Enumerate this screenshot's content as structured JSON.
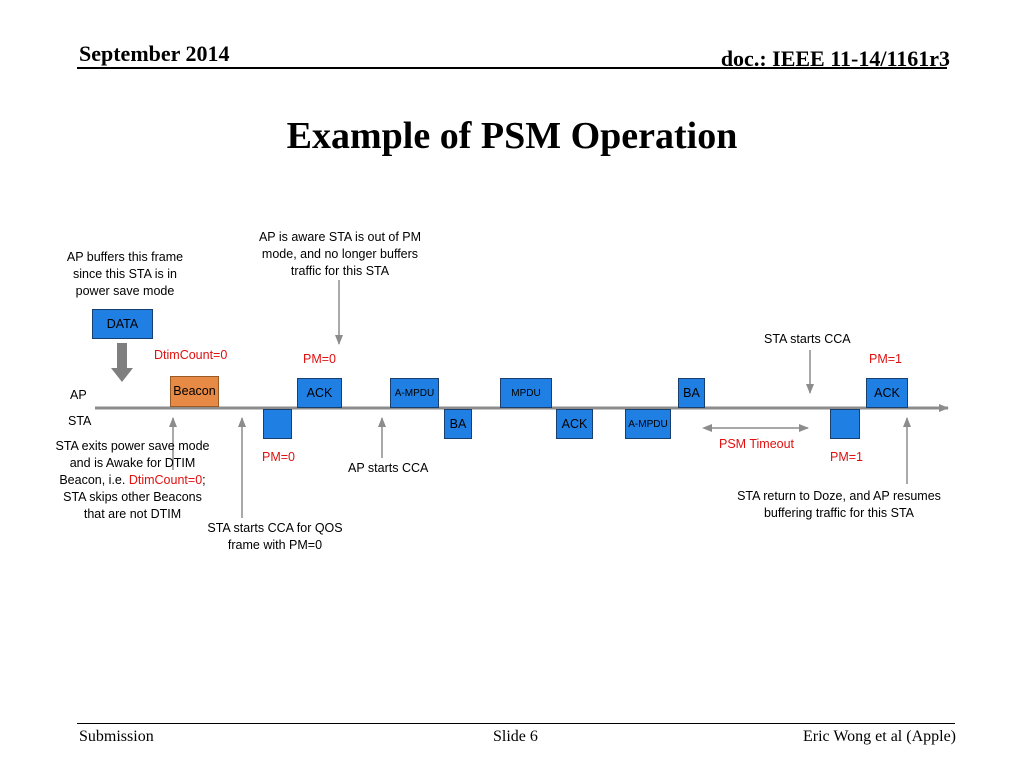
{
  "header": {
    "date": "September 2014",
    "doc": "doc.: IEEE 11-14/1161r3"
  },
  "title": "Example of PSM Operation",
  "footer": {
    "left": "Submission",
    "center": "Slide 6",
    "right": "Eric Wong et al (Apple)"
  },
  "rows": {
    "ap": "AP",
    "sta": "STA"
  },
  "frames": {
    "data": "DATA",
    "beacon": "Beacon",
    "ap_ack_1": "ACK",
    "ap_ampdu": "A-MPDU",
    "ap_mpdu": "MPDU",
    "ap_ba": "BA",
    "ap_ack_2": "ACK",
    "sta_null_1": "",
    "sta_ba": "BA",
    "sta_ack": "ACK",
    "sta_ampdu": "A-MPDU",
    "sta_null_2": ""
  },
  "labels": {
    "dtim_count": "DtimCount=0",
    "pm0_ap": "PM=0",
    "pm1_ap": "PM=1",
    "pm0_sta": "PM=0",
    "pm1_sta": "PM=1",
    "psm_timeout": "PSM Timeout",
    "sta_starts_cca_top": "STA starts CCA",
    "ap_starts_cca": "AP starts CCA"
  },
  "notes": {
    "ap_buffers": [
      "AP buffers this frame",
      "since this STA is in",
      "power save mode"
    ],
    "ap_aware": [
      "AP is aware STA is out of PM",
      "mode, and no longer buffers",
      "traffic for this STA"
    ],
    "sta_exits_1": "STA exits power save mode",
    "sta_exits_2": "and is Awake for DTIM",
    "sta_exits_3a": "Beacon, i.e. ",
    "sta_exits_3b": "DtimCount=0",
    "sta_exits_3c": ";",
    "sta_exits_4": "STA skips other Beacons",
    "sta_exits_5": "that are not DTIM",
    "sta_qos": [
      "STA starts CCA for QOS",
      "frame with PM=0"
    ],
    "sta_return": [
      "STA return to Doze, and AP resumes",
      "buffering traffic for this STA"
    ]
  },
  "colors": {
    "frame_blue": "#1f7fe3",
    "beacon_orange": "#e68a45",
    "accent_red": "#e0100f",
    "timeline_gray": "#8c8c8c"
  }
}
